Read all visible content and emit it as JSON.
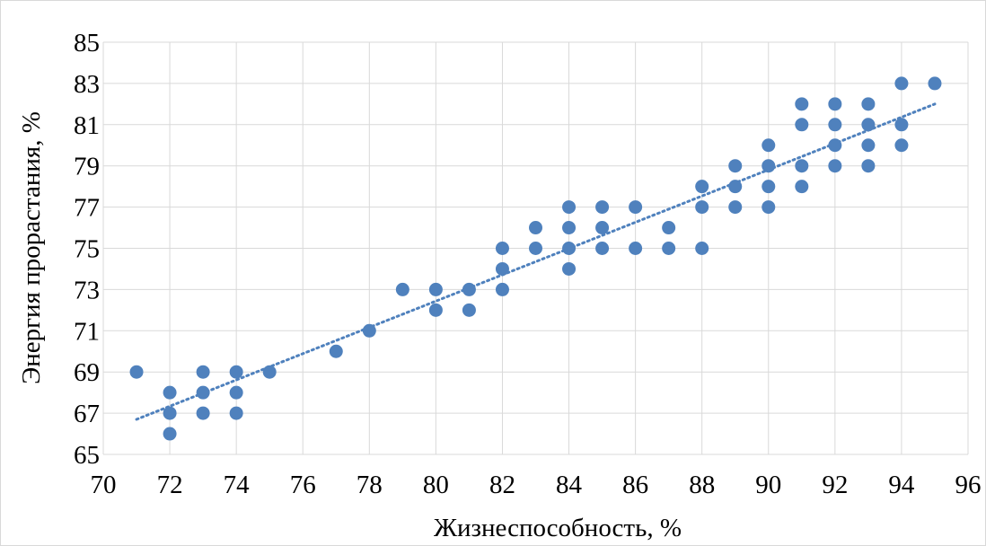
{
  "chart_data": {
    "type": "scatter",
    "xlabel": "Жизнеспособность, %",
    "ylabel": "Энергия прорастания, %",
    "xlim": [
      70,
      96
    ],
    "ylim": [
      65,
      85
    ],
    "x_ticks": [
      "70",
      "72",
      "74",
      "76",
      "78",
      "80",
      "82",
      "84",
      "86",
      "88",
      "90",
      "92",
      "94",
      "96"
    ],
    "y_ticks": [
      "65",
      "67",
      "69",
      "71",
      "73",
      "75",
      "77",
      "79",
      "81",
      "83",
      "85"
    ],
    "grid": true,
    "legend": "none",
    "marker_color": "#4f81bd",
    "trendline": {
      "type": "linear",
      "style": "dotted",
      "color": "#4f81bd",
      "from": [
        71,
        66.7
      ],
      "to": [
        95,
        82
      ]
    },
    "points": [
      [
        71,
        69
      ],
      [
        72,
        68
      ],
      [
        72,
        67
      ],
      [
        72,
        66
      ],
      [
        73,
        69
      ],
      [
        73,
        68
      ],
      [
        73,
        67
      ],
      [
        74,
        69
      ],
      [
        74,
        68
      ],
      [
        74,
        67
      ],
      [
        75,
        69
      ],
      [
        77,
        70
      ],
      [
        78,
        71
      ],
      [
        79,
        73
      ],
      [
        80,
        73
      ],
      [
        80,
        72
      ],
      [
        81,
        73
      ],
      [
        81,
        72
      ],
      [
        82,
        75
      ],
      [
        82,
        74
      ],
      [
        82,
        73
      ],
      [
        83,
        76
      ],
      [
        83,
        75
      ],
      [
        84,
        77
      ],
      [
        84,
        76
      ],
      [
        84,
        75
      ],
      [
        84,
        74
      ],
      [
        85,
        77
      ],
      [
        85,
        76
      ],
      [
        85,
        75
      ],
      [
        86,
        77
      ],
      [
        86,
        75
      ],
      [
        87,
        76
      ],
      [
        87,
        75
      ],
      [
        88,
        78
      ],
      [
        88,
        77
      ],
      [
        88,
        75
      ],
      [
        89,
        79
      ],
      [
        89,
        78
      ],
      [
        89,
        77
      ],
      [
        90,
        80
      ],
      [
        90,
        79
      ],
      [
        90,
        78
      ],
      [
        90,
        77
      ],
      [
        91,
        82
      ],
      [
        91,
        81
      ],
      [
        91,
        79
      ],
      [
        91,
        78
      ],
      [
        92,
        82
      ],
      [
        92,
        81
      ],
      [
        92,
        80
      ],
      [
        92,
        79
      ],
      [
        93,
        82
      ],
      [
        93,
        81
      ],
      [
        93,
        80
      ],
      [
        93,
        79
      ],
      [
        94,
        83
      ],
      [
        94,
        81
      ],
      [
        94,
        80
      ],
      [
        95,
        83
      ]
    ]
  }
}
